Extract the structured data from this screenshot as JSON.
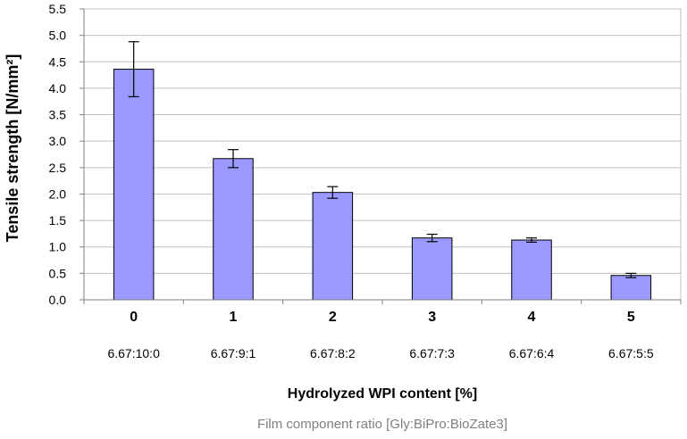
{
  "chart_data": {
    "type": "bar",
    "categories": [
      "0",
      "1",
      "2",
      "3",
      "4",
      "5"
    ],
    "sub_categories": [
      "6.67:10:0",
      "6.67:9:1",
      "6.67:8:2",
      "6.67:7:3",
      "6.67:6:4",
      "6.67:5:5"
    ],
    "values": [
      4.36,
      2.67,
      2.03,
      1.17,
      1.13,
      0.46
    ],
    "errors": [
      0.52,
      0.17,
      0.11,
      0.07,
      0.04,
      0.04
    ],
    "xlabel": "Hydrolyzed WPI content [%]",
    "xlabel2": "Film component ratio [Gly:BiPro:BioZate3]",
    "ylabel": "Tensile strength [N/mm²]",
    "ylim": [
      0,
      5.5
    ],
    "yticks": [
      "0.0",
      "0.5",
      "1.0",
      "1.5",
      "2.0",
      "2.5",
      "3.0",
      "3.5",
      "4.0",
      "4.5",
      "5.0",
      "5.5"
    ],
    "colors": {
      "bar_fill": "#9999ff",
      "bar_stroke": "#000000",
      "grid": "#c0c0c0",
      "axis": "#808080"
    },
    "grid": true,
    "legend": "none"
  }
}
